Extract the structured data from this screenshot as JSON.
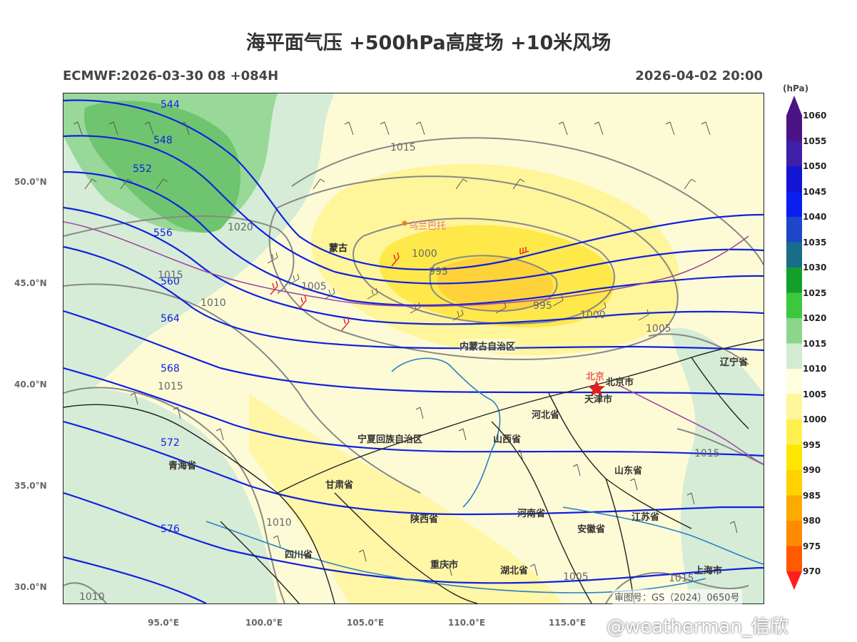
{
  "title": "海平面气压 +500hPa高度场 +10米风场",
  "subtitle_left": "ECMWF:2026-03-30 08 +084H",
  "subtitle_right": "2026-04-02 20:00",
  "audit_number": "审图号：GS（2024）0650号",
  "watermark": "@weatherman_信欣",
  "colorbar": {
    "unit": "(hPa)",
    "levels": [
      "1060",
      "1055",
      "1050",
      "1045",
      "1040",
      "1035",
      "1030",
      "1025",
      "1020",
      "1015",
      "1010",
      "1005",
      "1000",
      "995",
      "990",
      "985",
      "980",
      "975",
      "970"
    ],
    "colors": [
      "#4a1486",
      "#3f1fa8",
      "#1414d2",
      "#0a1ef0",
      "#1e46c8",
      "#176d8a",
      "#12a02a",
      "#3cc83c",
      "#8cd68c",
      "#d2ecd2",
      "#ffffde",
      "#fff59a",
      "#fff050",
      "#ffe600",
      "#ffd200",
      "#ffaa00",
      "#ff8c00",
      "#ff5a00",
      "#ff1e1e"
    ]
  },
  "axes": {
    "lat_labels": [
      "50.0°N",
      "45.0°N",
      "40.0°N",
      "35.0°N",
      "30.0°N"
    ],
    "lon_labels": [
      "95.0°E",
      "100.0°E",
      "105.0°E",
      "110.0°E",
      "115.0°E"
    ]
  },
  "height_contour_labels": [
    "544",
    "548",
    "552",
    "556",
    "560",
    "564",
    "568",
    "572",
    "576"
  ],
  "pressure_contour_labels": [
    "1015",
    "1020",
    "1015",
    "1010",
    "1005",
    "1000",
    "995",
    "995",
    "1000",
    "1005",
    "1015",
    "1010",
    "1015",
    "1005",
    "1015",
    "1010"
  ],
  "place_labels": {
    "mongolia": "蒙古",
    "ulaanbaatar": "乌兰巴托",
    "inner_mongolia": "内蒙古自治区",
    "beijing": "北京",
    "beijing_city": "北京市",
    "tianjin": "天津市",
    "liaoning": "辽宁省",
    "hebei": "河北省",
    "shanxi": "山西省",
    "ningxia": "宁夏回族自治区",
    "qinghai": "青海省",
    "gansu": "甘肃省",
    "shaanxi": "陕西省",
    "henan": "河南省",
    "shandong": "山东省",
    "anhui": "安徽省",
    "jiangsu": "江苏省",
    "sichuan": "四川省",
    "chongqing": "重庆市",
    "hubei": "湖北省",
    "shanghai": "上海市"
  }
}
